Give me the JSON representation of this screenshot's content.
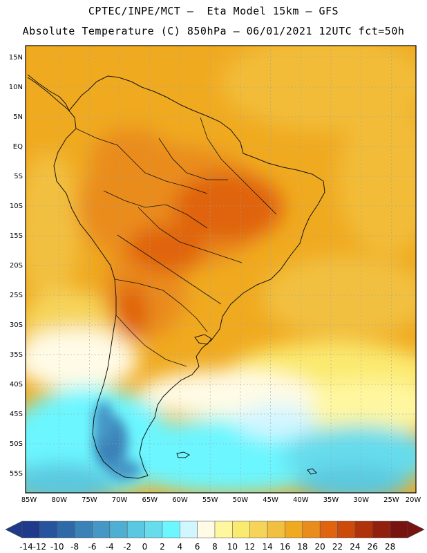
{
  "header": {
    "line1": "CPTEC/INPE/MCT –  Eta Model 15km – GFS",
    "line2": "Absolute Temperature (C) 850hPa – 06/01/2021 12UTC fct=50h"
  },
  "map": {
    "lat_labels": [
      "15N",
      "10N",
      "5N",
      "EQ",
      "5S",
      "10S",
      "15S",
      "20S",
      "25S",
      "30S",
      "35S",
      "40S",
      "45S",
      "50S",
      "55S"
    ],
    "lon_labels": [
      "85W",
      "80W",
      "75W",
      "70W",
      "65W",
      "60W",
      "55W",
      "50W",
      "45W",
      "40W",
      "35W",
      "30W",
      "25W",
      "20W"
    ]
  },
  "colorbar": {
    "labels": [
      "-14",
      "-12",
      "-10",
      "-8",
      "-6",
      "-4",
      "-2",
      "0",
      "2",
      "4",
      "6",
      "8",
      "10",
      "12",
      "14",
      "16",
      "18",
      "20",
      "22",
      "24",
      "26",
      "28"
    ],
    "colors": [
      "#1f3a8a",
      "#27549c",
      "#2f6aa8",
      "#3a82b8",
      "#4597c6",
      "#4fafd2",
      "#5ac8e0",
      "#66dcec",
      "#6cf6ff",
      "#d2f6ff",
      "#fffbe6",
      "#fff7a0",
      "#fbea70",
      "#f6d45a",
      "#f2c040",
      "#f0aa20",
      "#ea8c1c",
      "#e06410",
      "#cc4a0a",
      "#b0320a",
      "#92200e",
      "#781410"
    ]
  }
}
